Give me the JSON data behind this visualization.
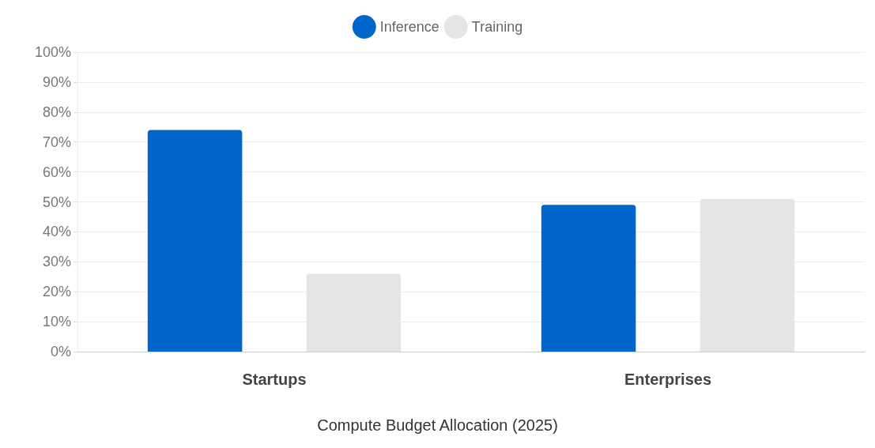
{
  "chart_data": {
    "type": "bar",
    "title": "Compute Budget Allocation (2025)",
    "categories": [
      "Startups",
      "Enterprises"
    ],
    "series": [
      {
        "name": "Inference",
        "color": "#0066cc",
        "values": [
          74,
          49
        ]
      },
      {
        "name": "Training",
        "color": "#e4e5e7",
        "values": [
          26,
          51
        ]
      }
    ],
    "ylim": [
      0,
      100
    ],
    "yticks": [
      {
        "value": 0,
        "label": "0%"
      },
      {
        "value": 10,
        "label": "10%"
      },
      {
        "value": 20,
        "label": "20%"
      },
      {
        "value": 30,
        "label": "30%"
      },
      {
        "value": 40,
        "label": "40%"
      },
      {
        "value": 50,
        "label": "50%"
      },
      {
        "value": 60,
        "label": "60%"
      },
      {
        "value": 70,
        "label": "70%"
      },
      {
        "value": 80,
        "label": "80%"
      },
      {
        "value": 90,
        "label": "90%"
      },
      {
        "value": 100,
        "label": "100%"
      }
    ],
    "grid": "y",
    "legend": "top"
  }
}
